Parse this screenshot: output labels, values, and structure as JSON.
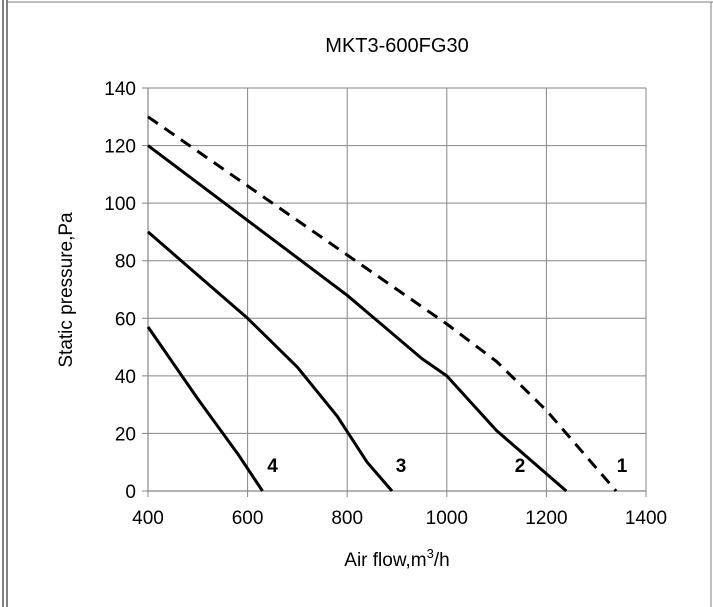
{
  "chart_data": {
    "type": "line",
    "title": "MKT3-600FG30",
    "xlabel": "Air flow,m",
    "xlabel_sup": "3",
    "xlabel_suffix": "/h",
    "ylabel": "Static pressure,Pa",
    "xlim": [
      400,
      1400
    ],
    "ylim": [
      0,
      140
    ],
    "x_ticks": [
      400,
      600,
      800,
      1000,
      1200,
      1400
    ],
    "y_ticks": [
      0,
      20,
      40,
      60,
      80,
      100,
      120,
      140
    ],
    "grid": true,
    "legend": "none",
    "series": [
      {
        "name": "1",
        "style": "dashed",
        "label_at": [
          1352,
          7
        ],
        "points": [
          [
            400,
            130
          ],
          [
            600,
            106
          ],
          [
            800,
            82
          ],
          [
            1000,
            58
          ],
          [
            1100,
            45
          ],
          [
            1200,
            28
          ],
          [
            1270,
            14
          ],
          [
            1340,
            0
          ]
        ]
      },
      {
        "name": "2",
        "style": "solid",
        "label_at": [
          1147,
          7
        ],
        "points": [
          [
            400,
            120
          ],
          [
            600,
            94
          ],
          [
            800,
            68
          ],
          [
            950,
            46
          ],
          [
            1000,
            40
          ],
          [
            1100,
            21
          ],
          [
            1240,
            0
          ]
        ]
      },
      {
        "name": "3",
        "style": "solid",
        "label_at": [
          908,
          7
        ],
        "points": [
          [
            400,
            90
          ],
          [
            500,
            75
          ],
          [
            600,
            60
          ],
          [
            700,
            43
          ],
          [
            780,
            26
          ],
          [
            840,
            10
          ],
          [
            890,
            0
          ]
        ]
      },
      {
        "name": "4",
        "style": "solid",
        "label_at": [
          650,
          7
        ],
        "points": [
          [
            400,
            57
          ],
          [
            500,
            32
          ],
          [
            580,
            13
          ],
          [
            630,
            0
          ]
        ]
      }
    ]
  }
}
